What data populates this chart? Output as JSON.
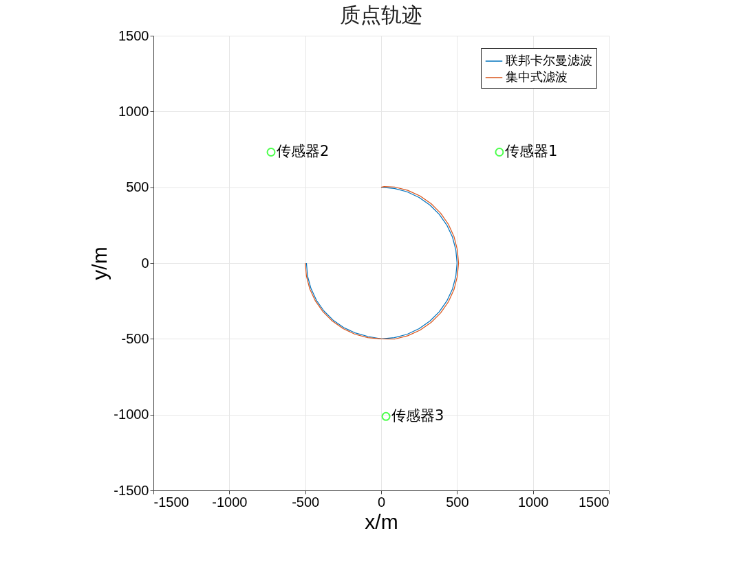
{
  "chart_data": {
    "type": "line",
    "title": "质点轨迹",
    "xlabel": "x/m",
    "ylabel": "y/m",
    "xlim": [
      -1500,
      1500
    ],
    "ylim": [
      -1500,
      1500
    ],
    "xticks": [
      -1500,
      -1000,
      -500,
      0,
      500,
      1000,
      1500
    ],
    "yticks": [
      -1500,
      -1000,
      -500,
      0,
      500,
      1000,
      1500
    ],
    "grid": true,
    "legend": "top right",
    "line_style": "solid",
    "series": [
      {
        "name": "联邦卡尔曼滤波",
        "type": "line",
        "color": "#0072bd",
        "marker": "none",
        "x": [
          -492,
          -485,
          -462,
          -426,
          -377,
          -316,
          -246,
          -168,
          -85,
          0,
          87,
          171,
          250,
          321,
          383,
          433,
          470,
          492,
          500,
          492,
          470,
          433,
          383,
          321,
          250,
          171,
          87,
          0
        ],
        "values": [
          0,
          -85,
          -168,
          -246,
          -316,
          -377,
          -426,
          -462,
          -485,
          -500,
          -492,
          -470,
          -433,
          -383,
          -321,
          -250,
          -171,
          -87,
          0,
          87,
          171,
          250,
          321,
          383,
          433,
          470,
          492,
          500
        ]
      },
      {
        "name": "集中式滤波",
        "type": "line",
        "color": "#d95319",
        "marker": "none",
        "x": [
          -500,
          -492,
          -470,
          -433,
          -383,
          -321,
          -250,
          -171,
          -87,
          0,
          88,
          175,
          256,
          329,
          392,
          443,
          480,
          502,
          510,
          502,
          480,
          443,
          392,
          329,
          256,
          175,
          88,
          20,
          0
        ],
        "values": [
          0,
          -87,
          -171,
          -250,
          -321,
          -383,
          -433,
          -470,
          -492,
          -500,
          -502,
          -480,
          -443,
          -392,
          -329,
          -256,
          -175,
          -88,
          0,
          88,
          175,
          256,
          329,
          392,
          443,
          480,
          502,
          505,
          500
        ]
      },
      {
        "type": "scatter",
        "color": "#00ff00",
        "marker": "circle",
        "x": [
          779,
          -725,
          32
        ],
        "values": [
          732,
          732,
          -1012
        ]
      }
    ],
    "annotations": [
      {
        "text": "传感器1",
        "x": 779,
        "y": 732
      },
      {
        "text": "传感器2",
        "x": -725,
        "y": 732
      },
      {
        "text": "传感器3",
        "x": 32,
        "y": -1012
      }
    ]
  }
}
